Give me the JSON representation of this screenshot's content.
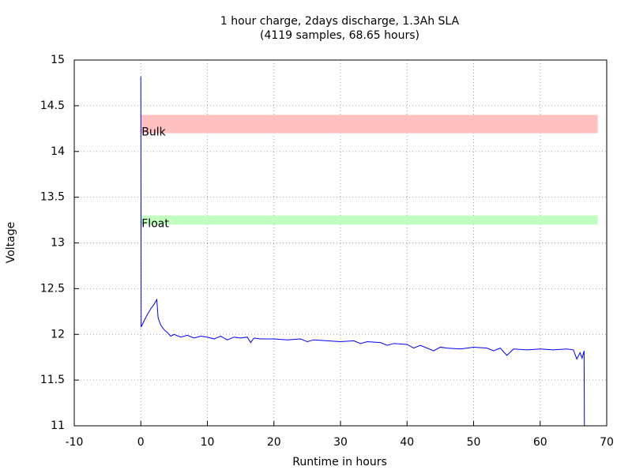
{
  "chart_data": {
    "type": "line",
    "title": "1 hour charge, 2days discharge, 1.3Ah SLA",
    "subtitle": "(4119 samples, 68.65 hours)",
    "x_label": "Runtime in hours",
    "y_label": "Voltage",
    "xlim": [
      -10,
      70
    ],
    "ylim": [
      11,
      15
    ],
    "xticks": [
      -10,
      0,
      10,
      20,
      30,
      40,
      50,
      60,
      70
    ],
    "yticks": [
      11,
      11.5,
      12,
      12.5,
      13,
      13.5,
      14,
      14.5,
      15
    ],
    "grid": true,
    "bands": [
      {
        "label": "Bulk",
        "x": [
          0,
          68.65
        ],
        "y": [
          14.2,
          14.4
        ],
        "color": "#ffc0c0"
      },
      {
        "label": "Float",
        "x": [
          0,
          68.65
        ],
        "y": [
          13.2,
          13.3
        ],
        "color": "#c0ffc0"
      }
    ],
    "series": [
      {
        "color": "#0000ff",
        "x": [
          0,
          0.05,
          0.5,
          1,
          1.5,
          2,
          2.4,
          2.6,
          3,
          3.5,
          4,
          4.5,
          5,
          6,
          7,
          8,
          9,
          10,
          11,
          12,
          13,
          14,
          15,
          16,
          16.5,
          17,
          18,
          20,
          22,
          24,
          25,
          26,
          28,
          30,
          32,
          33,
          34,
          36,
          37,
          38,
          40,
          41,
          42,
          43,
          44,
          45,
          46,
          48,
          50,
          52,
          53,
          54,
          55,
          56,
          58,
          60,
          62,
          64,
          65,
          65.5,
          66,
          66.3,
          66.6,
          66.65
        ],
        "values": [
          14.82,
          12.08,
          12.15,
          12.22,
          12.28,
          12.33,
          12.38,
          12.18,
          12.1,
          12.05,
          12.02,
          11.98,
          12.0,
          11.97,
          11.99,
          11.96,
          11.98,
          11.97,
          11.95,
          11.98,
          11.94,
          11.97,
          11.96,
          11.97,
          11.91,
          11.96,
          11.95,
          11.95,
          11.94,
          11.95,
          11.92,
          11.94,
          11.93,
          11.92,
          11.93,
          11.9,
          11.92,
          11.91,
          11.88,
          11.9,
          11.89,
          11.85,
          11.88,
          11.85,
          11.82,
          11.86,
          11.85,
          11.84,
          11.86,
          11.85,
          11.82,
          11.85,
          11.77,
          11.84,
          11.83,
          11.84,
          11.83,
          11.84,
          11.83,
          11.73,
          11.8,
          11.74,
          11.82,
          11.0
        ]
      }
    ]
  }
}
